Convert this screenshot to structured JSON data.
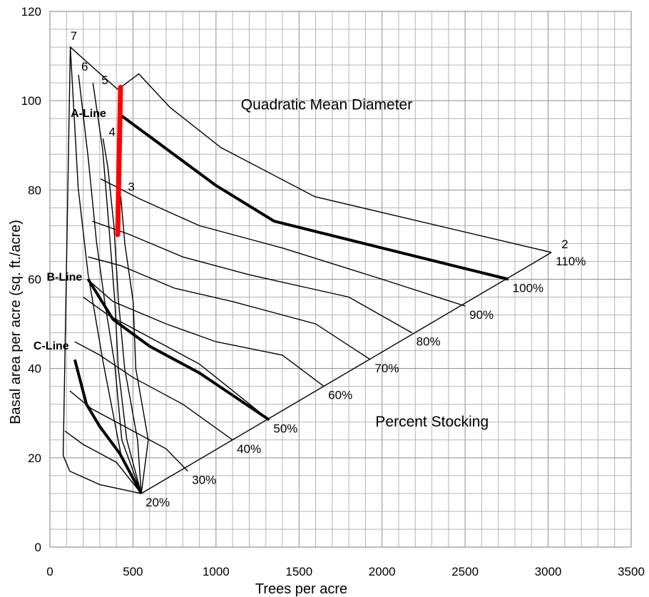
{
  "chart_data": {
    "type": "line",
    "title": "",
    "xlabel": "Trees per acre",
    "ylabel": "Basal area per acre (sq. ft./acre)",
    "xlim": [
      0,
      3500
    ],
    "ylim": [
      0,
      120
    ],
    "xticks": [
      0,
      500,
      1000,
      1500,
      2000,
      2500,
      3000,
      3500
    ],
    "yticks": [
      0,
      20,
      40,
      60,
      80,
      100,
      120
    ],
    "xtick_labels": [
      "0",
      "500",
      "1000",
      "1500",
      "2000",
      "2500",
      "3000",
      "3500"
    ],
    "ytick_labels": [
      "0",
      "20",
      "40",
      "60",
      "80",
      "100",
      "120"
    ],
    "grid": true,
    "annotations": {
      "qmd": "Quadratic Mean Diameter",
      "stocking": "Percent Stocking"
    },
    "qmd_lines": [
      {
        "label": "7",
        "points": [
          [
            550,
            12
          ],
          [
            429,
            20.5
          ],
          [
            320,
            41.5
          ],
          [
            230,
            61
          ],
          [
            170,
            80.5
          ],
          [
            123,
            112
          ]
        ]
      },
      {
        "label": "6",
        "points": [
          [
            550,
            12
          ],
          [
            433,
            24
          ],
          [
            390,
            41
          ],
          [
            330,
            55
          ],
          [
            280,
            68.5
          ],
          [
            231,
            87
          ],
          [
            172,
            105.8
          ]
        ]
      },
      {
        "label": "5",
        "points": [
          [
            550,
            12
          ],
          [
            463,
            24
          ],
          [
            412,
            40
          ],
          [
            391,
            55
          ],
          [
            359,
            70
          ],
          [
            318,
            89
          ],
          [
            259,
            104
          ]
        ]
      },
      {
        "label": "4",
        "points": [
          [
            550,
            12
          ],
          [
            528,
            24
          ],
          [
            450,
            40
          ],
          [
            413,
            55
          ],
          [
            385,
            72
          ],
          [
            349,
            85
          ],
          [
            320,
            91.5
          ]
        ]
      },
      {
        "label": "3",
        "points": [
          [
            550,
            12
          ],
          [
            592,
            24
          ],
          [
            517,
            40
          ],
          [
            501,
            55
          ],
          [
            451,
            68
          ],
          [
            427,
            78.5
          ]
        ]
      },
      {
        "label": "2",
        "points": [
          [
            550,
            12
          ],
          [
            3020,
            66
          ]
        ]
      }
    ],
    "stocking_lines": [
      {
        "label": "110%",
        "points": [
          [
            409,
            102.5
          ],
          [
            535,
            106
          ],
          [
            723,
            98.5
          ],
          [
            1030,
            89.5
          ],
          [
            1595,
            78.5
          ],
          [
            3020,
            66
          ]
        ]
      },
      {
        "label": "100%",
        "points": [
          [
            417,
            97
          ],
          [
            610,
            92
          ],
          [
            1000,
            81
          ],
          [
            1350,
            73
          ],
          [
            2000,
            67
          ],
          [
            2760,
            60
          ]
        ]
      },
      {
        "label": "90%",
        "points": [
          [
            305,
            82.5
          ],
          [
            540,
            78
          ],
          [
            900,
            72
          ],
          [
            1400,
            67
          ],
          [
            2000,
            60
          ],
          [
            2500,
            54
          ]
        ]
      },
      {
        "label": "80%",
        "points": [
          [
            255,
            73
          ],
          [
            480,
            70
          ],
          [
            800,
            65
          ],
          [
            1200,
            61
          ],
          [
            1800,
            56
          ],
          [
            2180,
            48
          ]
        ]
      },
      {
        "label": "70%",
        "points": [
          [
            230,
            65
          ],
          [
            430,
            63
          ],
          [
            750,
            58
          ],
          [
            1100,
            55
          ],
          [
            1600,
            50
          ],
          [
            1930,
            42
          ]
        ]
      },
      {
        "label": "60%",
        "points": [
          [
            225,
            60
          ],
          [
            380,
            55
          ],
          [
            700,
            50
          ],
          [
            1000,
            46
          ],
          [
            1400,
            43
          ],
          [
            1650,
            36
          ]
        ]
      },
      {
        "label": "50%",
        "points": [
          [
            200,
            56
          ],
          [
            350,
            52
          ],
          [
            600,
            47
          ],
          [
            900,
            41
          ],
          [
            1320,
            28.5
          ]
        ]
      },
      {
        "label": "40%",
        "points": [
          [
            150,
            46
          ],
          [
            300,
            43
          ],
          [
            500,
            38
          ],
          [
            800,
            32
          ],
          [
            1100,
            24
          ]
        ]
      },
      {
        "label": "30%",
        "points": [
          [
            120,
            35
          ],
          [
            250,
            31
          ],
          [
            450,
            27
          ],
          [
            700,
            22
          ],
          [
            830,
            17
          ]
        ]
      },
      {
        "label": "20%",
        "points": [
          [
            90,
            26
          ],
          [
            200,
            23
          ],
          [
            400,
            19
          ],
          [
            550,
            12
          ]
        ]
      }
    ],
    "reference_lines": [
      {
        "label": "A-Line",
        "points": [
          [
            417,
            97
          ],
          [
            1000,
            81
          ],
          [
            1350,
            73
          ],
          [
            2000,
            67
          ],
          [
            2760,
            60
          ]
        ]
      },
      {
        "label": "B-Line",
        "points": [
          [
            230,
            60
          ],
          [
            380,
            51
          ],
          [
            600,
            45
          ],
          [
            900,
            39
          ],
          [
            1320,
            28.5
          ]
        ]
      },
      {
        "label": "C-Line",
        "points": [
          [
            150,
            42
          ],
          [
            220,
            32
          ],
          [
            300,
            27
          ],
          [
            420,
            21
          ],
          [
            550,
            12
          ]
        ]
      }
    ],
    "highlight_line": {
      "color": "#ff0000",
      "points": [
        [
          425,
          103
        ],
        [
          408,
          70
        ]
      ]
    },
    "boundary": [
      [
        409,
        102.5
      ],
      [
        123,
        112
      ],
      [
        80,
        20.5
      ],
      [
        120,
        17
      ],
      [
        300,
        14
      ],
      [
        550,
        12
      ]
    ]
  }
}
